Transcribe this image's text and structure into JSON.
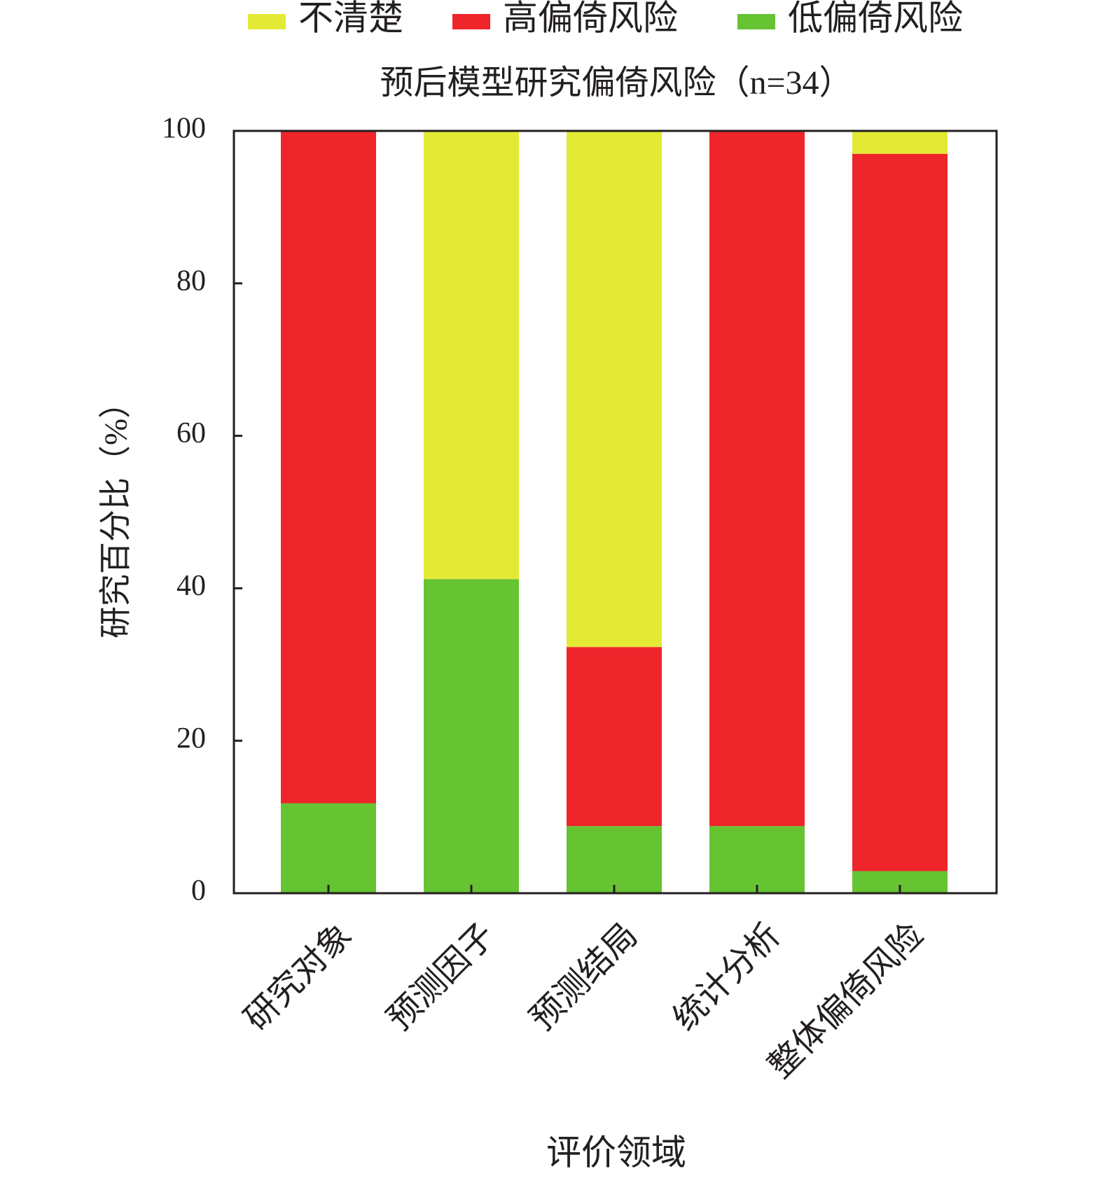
{
  "chart_data": {
    "type": "stacked_bar",
    "title": "预后模型研究偏倚风险（n=34）",
    "x_label": "评价领域",
    "y_label": "研究百分比（%）",
    "categories": [
      "研究对象",
      "预测因子",
      "预测结局",
      "统计分析",
      "整体偏倚风险"
    ],
    "series": [
      {
        "name": "不清楚",
        "color": "#e3ea36",
        "values": [
          0,
          58.8,
          67.7,
          0,
          2.9
        ]
      },
      {
        "name": "高偏倚风险",
        "color": "#ee252b",
        "values": [
          88.2,
          0,
          23.5,
          91.2,
          94.1
        ]
      },
      {
        "name": "低偏倚风险",
        "color": "#66c332",
        "values": [
          11.8,
          41.2,
          8.8,
          8.8,
          2.9
        ]
      }
    ],
    "ylim": [
      0,
      100
    ],
    "yticks": [
      0,
      20,
      40,
      60,
      80,
      100
    ]
  }
}
